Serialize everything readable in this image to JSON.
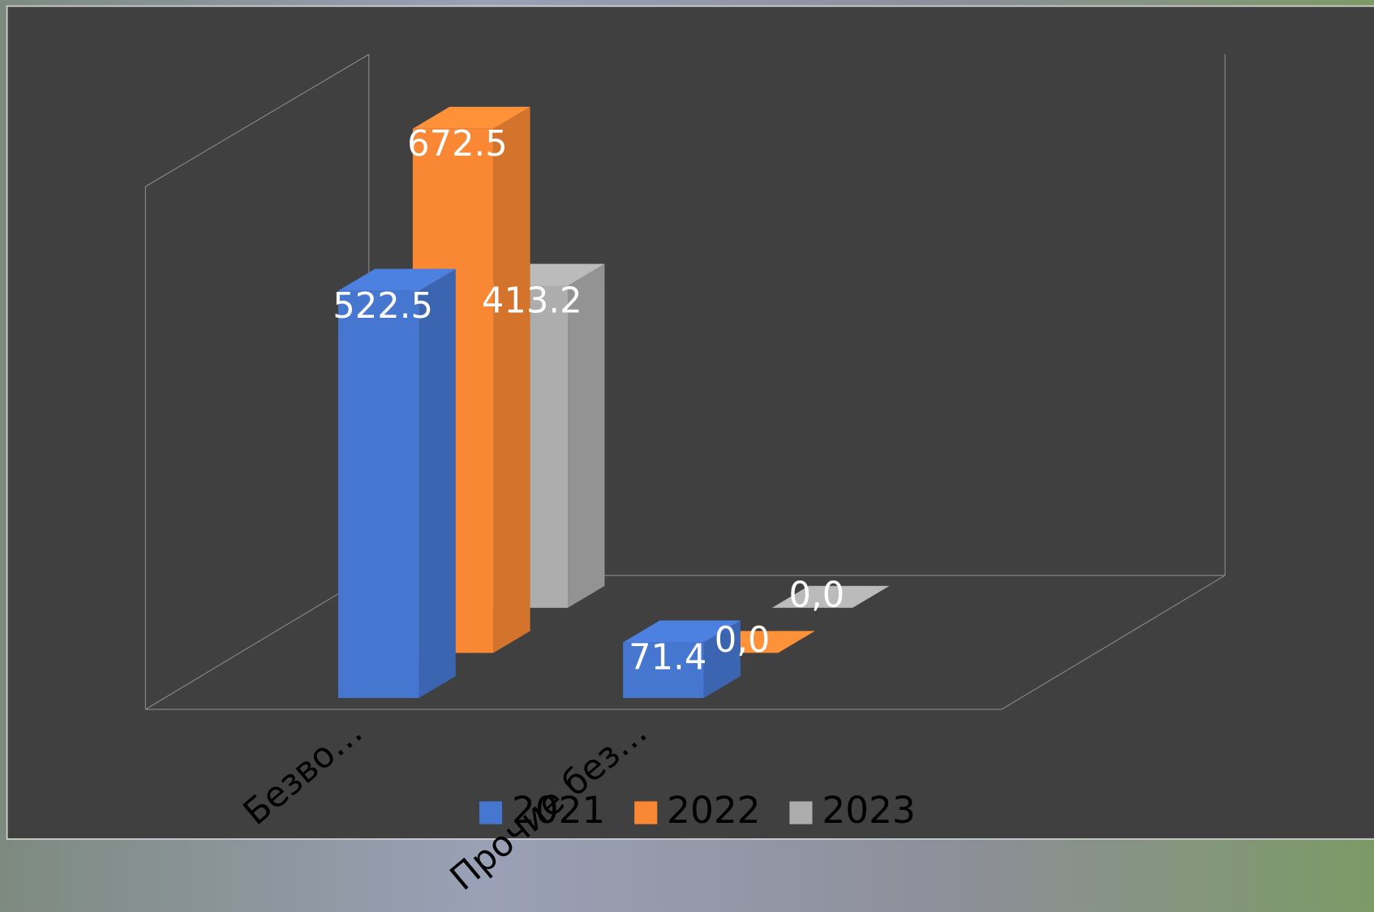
{
  "chart_data": {
    "type": "bar3d",
    "categories": [
      "Безво…",
      "Прочие без…"
    ],
    "series": [
      {
        "name": "2021",
        "color": "#4677d0",
        "values": [
          522.5,
          71.4
        ]
      },
      {
        "name": "2022",
        "color": "#f98734",
        "values": [
          672.5,
          0
        ],
        "value_labels": [
          "672.5",
          "0,0"
        ]
      },
      {
        "name": "2023",
        "color": "#adadad",
        "values": [
          413.2,
          0
        ],
        "value_labels": [
          "413.2",
          "0,0"
        ]
      }
    ],
    "legend": "bottom"
  }
}
